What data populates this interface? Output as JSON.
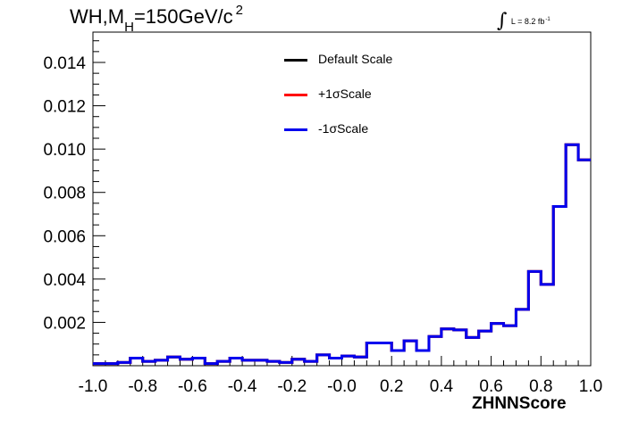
{
  "title": {
    "main": "WH,M",
    "sub": "H",
    "rest": "=150GeV/c",
    "sup": "2"
  },
  "luminosity": {
    "symbol": "∫",
    "text": "L = 8.2 fb",
    "sup": "-1"
  },
  "legend": [
    {
      "label": "Default Scale",
      "color": "#000000"
    },
    {
      "label": "+1σScale",
      "color": "#ff0000"
    },
    {
      "label": "-1σScale",
      "color": "#0000ee"
    }
  ],
  "chart_data": {
    "type": "histogram",
    "xlabel": "ZHNNScore",
    "xlim": [
      -1.0,
      1.0
    ],
    "ylim": [
      0.0,
      0.0154
    ],
    "x_ticks": [
      "-1.0",
      "-0.8",
      "-0.6",
      "-0.4",
      "-0.2",
      "-0.0",
      "0.2",
      "0.4",
      "0.6",
      "0.8",
      "1.0"
    ],
    "y_ticks": [
      "0.002",
      "0.004",
      "0.006",
      "0.008",
      "0.010",
      "0.012",
      "0.014"
    ],
    "bin_edges": [
      -1.0,
      -0.95,
      -0.9,
      -0.85,
      -0.8,
      -0.75,
      -0.7,
      -0.65,
      -0.6,
      -0.55,
      -0.5,
      -0.45,
      -0.4,
      -0.35,
      -0.3,
      -0.25,
      -0.2,
      -0.15,
      -0.1,
      -0.05,
      0.0,
      0.05,
      0.1,
      0.15,
      0.2,
      0.25,
      0.3,
      0.35,
      0.4,
      0.45,
      0.5,
      0.55,
      0.6,
      0.65,
      0.7,
      0.75,
      0.8,
      0.85,
      0.9,
      0.95,
      1.0
    ],
    "series": [
      {
        "name": "Default Scale",
        "color": "#000000",
        "values": [
          0.0001,
          0.0001,
          0.00015,
          0.00035,
          0.0002,
          0.00025,
          0.0004,
          0.0003,
          0.00035,
          0.0001,
          0.0002,
          0.00035,
          0.00025,
          0.00025,
          0.0002,
          0.00015,
          0.0003,
          0.0002,
          0.0005,
          0.00035,
          0.00045,
          0.0004,
          0.00105,
          0.00105,
          0.0007,
          0.00115,
          0.0007,
          0.00135,
          0.0017,
          0.00165,
          0.0013,
          0.0016,
          0.00195,
          0.00185,
          0.0026,
          0.00435,
          0.00375,
          0.00735,
          0.0102,
          0.0095
        ]
      },
      {
        "name": "+1σScale",
        "color": "#ff0000",
        "values": [
          0.0001,
          0.0001,
          0.00015,
          0.00035,
          0.0002,
          0.00025,
          0.0004,
          0.0003,
          0.00035,
          0.0001,
          0.0002,
          0.00035,
          0.00025,
          0.00025,
          0.0002,
          0.00015,
          0.0003,
          0.0002,
          0.0005,
          0.00035,
          0.00045,
          0.0004,
          0.00105,
          0.00105,
          0.0007,
          0.00115,
          0.0007,
          0.00135,
          0.0017,
          0.00165,
          0.0013,
          0.0016,
          0.00195,
          0.00185,
          0.0026,
          0.00435,
          0.00375,
          0.00735,
          0.0102,
          0.0095
        ]
      },
      {
        "name": "-1σScale",
        "color": "#0000ee",
        "values": [
          0.0001,
          0.0001,
          0.00015,
          0.00035,
          0.0002,
          0.00025,
          0.0004,
          0.0003,
          0.00035,
          0.0001,
          0.0002,
          0.00035,
          0.00025,
          0.00025,
          0.0002,
          0.00015,
          0.0003,
          0.0002,
          0.0005,
          0.00035,
          0.00045,
          0.0004,
          0.00105,
          0.00105,
          0.0007,
          0.00115,
          0.0007,
          0.00135,
          0.0017,
          0.00165,
          0.0013,
          0.0016,
          0.00195,
          0.00185,
          0.0026,
          0.00435,
          0.00375,
          0.00735,
          0.0102,
          0.0095
        ]
      }
    ]
  }
}
